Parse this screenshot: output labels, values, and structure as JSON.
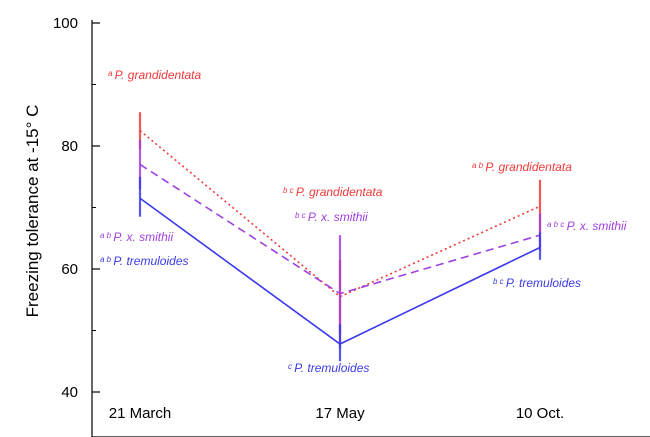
{
  "chart_data": {
    "type": "line",
    "ylabel": "Freezing tolerance at  -15° C",
    "ylim": [
      40,
      100
    ],
    "yticks": [
      40,
      60,
      80,
      100
    ],
    "categories": [
      "21 March",
      "17 May",
      "10 Oct."
    ],
    "grid": false,
    "series": [
      {
        "name": "P. grandidentata",
        "color": "#f03a3a",
        "style": "dotted",
        "values": [
          82.5,
          55.5,
          70.2
        ],
        "err_low": [
          79.5,
          49.5,
          66.0
        ],
        "err_high": [
          85.5,
          61.5,
          74.5
        ]
      },
      {
        "name": "P. x. smithii",
        "color": "#a040e0",
        "style": "dashed",
        "values": [
          77.0,
          56.0,
          65.5
        ],
        "err_low": [
          73.0,
          47.0,
          63.0
        ],
        "err_high": [
          81.0,
          65.5,
          69.0
        ]
      },
      {
        "name": "P. tremuloides",
        "color": "#3a3ae8",
        "style": "solid",
        "values": [
          71.5,
          47.8,
          63.5
        ],
        "err_low": [
          68.5,
          45.0,
          61.5
        ],
        "err_high": [
          75.0,
          51.0,
          66.0
        ]
      }
    ],
    "annotations": [
      {
        "sup": "a",
        "text": "P. grandidentata",
        "series": 0,
        "point": 0
      },
      {
        "sup": "a b",
        "text": "P. x. smithii",
        "series": 1,
        "point": 0
      },
      {
        "sup": "a b",
        "text": "P. tremuloides",
        "series": 2,
        "point": 0
      },
      {
        "sup": "b c",
        "text": "P. grandidentata",
        "series": 0,
        "point": 1
      },
      {
        "sup": "b c",
        "text": "P. x. smithii",
        "series": 1,
        "point": 1
      },
      {
        "sup": "c",
        "text": "P. tremuloides",
        "series": 2,
        "point": 1
      },
      {
        "sup": "a b",
        "text": "P. grandidentata",
        "series": 0,
        "point": 2
      },
      {
        "sup": "a b c",
        "text": "P. x. smithii",
        "series": 1,
        "point": 2
      },
      {
        "sup": "b c",
        "text": "P. tremuloides",
        "series": 2,
        "point": 2
      }
    ]
  }
}
